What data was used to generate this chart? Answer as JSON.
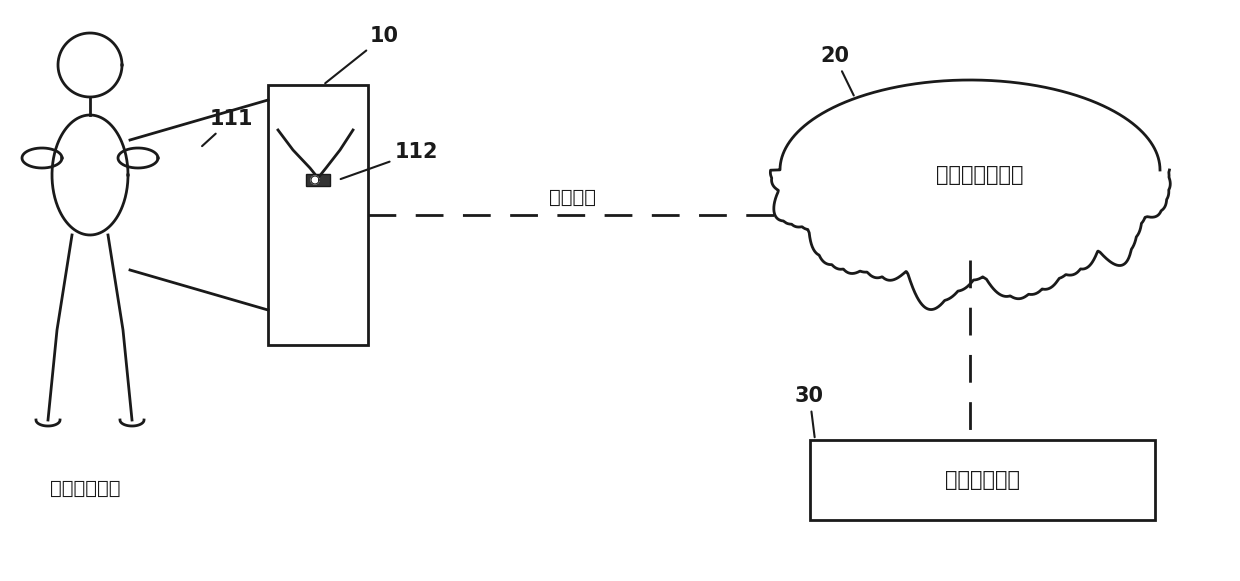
{
  "bg_color": "#ffffff",
  "line_color": "#1a1a1a",
  "label_10": "10",
  "label_20": "20",
  "label_30": "30",
  "label_111": "111",
  "label_112": "112",
  "text_infrared": "人体远红外线",
  "text_wireless": "无线网络",
  "text_cloud": "云健康服务平台",
  "text_hospital": "合作医疗机构",
  "font_size_label": 15,
  "font_size_text": 14,
  "fig_w": 12.4,
  "fig_h": 5.81,
  "dpi": 100
}
